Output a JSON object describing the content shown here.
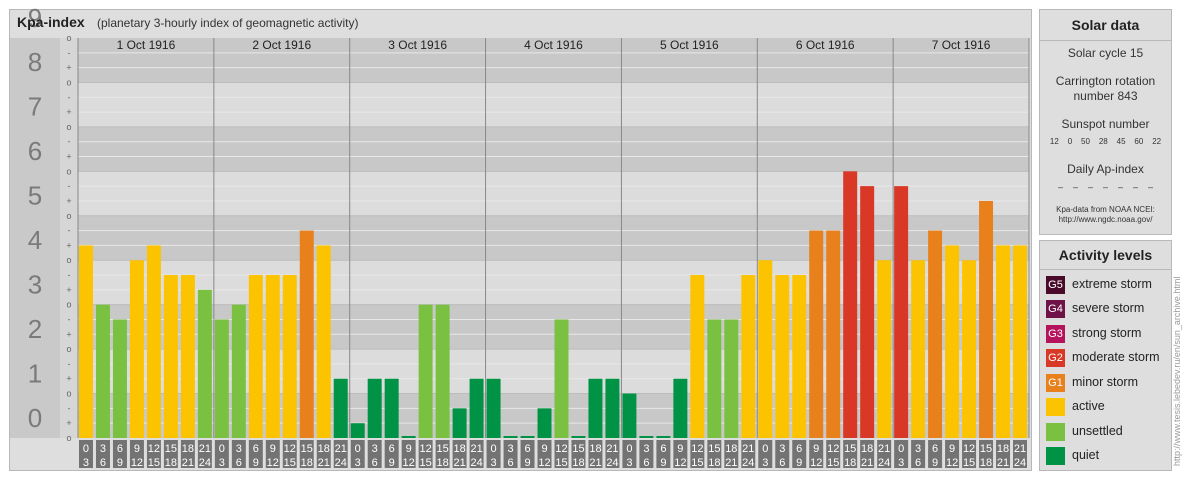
{
  "header": {
    "title": "Kpa-index",
    "subtitle": "(planetary 3-hourly index of geomagnetic activity)"
  },
  "chart_data": {
    "type": "bar",
    "title": "Kpa-index",
    "subtitle": "(planetary 3-hourly index of geomagnetic activity)",
    "y_ticks": [
      "0",
      "1",
      "2",
      "3",
      "4",
      "5",
      "6",
      "7",
      "8",
      "9"
    ],
    "minor_marks": [
      "+",
      "o",
      "-"
    ],
    "ylim": [
      0,
      9
    ],
    "days": [
      "1 Oct 1916",
      "2 Oct 1916",
      "3 Oct 1916",
      "4 Oct 1916",
      "5 Oct 1916",
      "6 Oct 1916",
      "7 Oct 1916"
    ],
    "hour_labels": [
      [
        "0",
        "3"
      ],
      [
        "3",
        "6"
      ],
      [
        "6",
        "9"
      ],
      [
        "9",
        "12"
      ],
      [
        "12",
        "15"
      ],
      [
        "15",
        "18"
      ],
      [
        "18",
        "21"
      ],
      [
        "21",
        "24"
      ]
    ],
    "values": [
      [
        4.333,
        3.0,
        2.667,
        4.0,
        4.333,
        3.667,
        3.667,
        3.333
      ],
      [
        2.667,
        3.0,
        3.667,
        3.667,
        3.667,
        4.667,
        4.333,
        1.333
      ],
      [
        0.333,
        1.333,
        1.333,
        0.0,
        3.0,
        3.0,
        0.667,
        1.333
      ],
      [
        1.333,
        0.0,
        0.0,
        0.667,
        2.667,
        0.0,
        1.333,
        1.333
      ],
      [
        1.0,
        0.0,
        0.0,
        1.333,
        3.667,
        2.667,
        2.667,
        3.667
      ],
      [
        4.0,
        3.667,
        3.667,
        4.667,
        4.667,
        6.0,
        5.667,
        4.0
      ],
      [
        5.667,
        4.0,
        4.667,
        4.333,
        4.0,
        5.333,
        4.333,
        4.333
      ]
    ],
    "colors": {
      "quiet": "#009245",
      "unsettled": "#7ac142",
      "active": "#fcc400",
      "minor_storm": "#e8801c",
      "moderate_storm": "#d93826",
      "strong_storm": "#b5135b",
      "severe_storm": "#6e1247",
      "extreme_storm": "#4a0a2a"
    },
    "grid": true,
    "legend_position": "right"
  },
  "solar": {
    "title": "Solar data",
    "cycle": "Solar cycle 15",
    "carrington_line1": "Carrington rotation",
    "carrington_line2": "number 843",
    "sunspot_title": "Sunspot number",
    "sunspot_values": "12    0    50    28    45    60    22",
    "ap_title": "Daily Ap-index",
    "ap_values": "–    –    –    –    –    –    –",
    "source_line1": "Kpa-data from NOAA NCEI:",
    "source_line2": "http://www.ngdc.noaa.gov/"
  },
  "activity": {
    "title": "Activity levels",
    "items": [
      {
        "badge": "G5",
        "label": "extreme storm",
        "color": "#4a0a2a"
      },
      {
        "badge": "G4",
        "label": "severe storm",
        "color": "#6e1247"
      },
      {
        "badge": "G3",
        "label": "strong storm",
        "color": "#b5135b"
      },
      {
        "badge": "G2",
        "label": "moderate storm",
        "color": "#d93826"
      },
      {
        "badge": "G1",
        "label": "minor storm",
        "color": "#e8801c"
      },
      {
        "badge": "",
        "label": "active",
        "color": "#fcc400"
      },
      {
        "badge": "",
        "label": "unsettled",
        "color": "#7ac142"
      },
      {
        "badge": "",
        "label": "quiet",
        "color": "#009245"
      }
    ]
  },
  "credit": "http://www.tesis.lebedev.ru/en/sun_archive.html"
}
